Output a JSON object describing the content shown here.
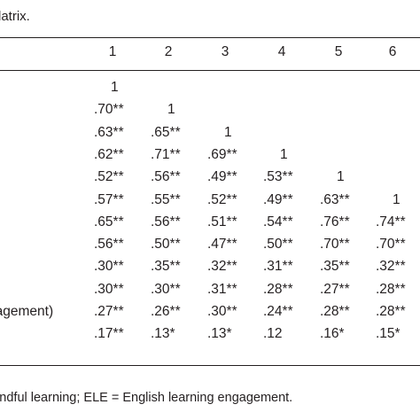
{
  "caption": "latrix.",
  "columns": [
    "1",
    "2",
    "3",
    "4",
    "5",
    "6"
  ],
  "rows": [
    {
      "label": "",
      "cells": [
        "1",
        "",
        "",
        "",
        "",
        ""
      ]
    },
    {
      "label": "",
      "cells": [
        ".70**",
        "1",
        "",
        "",
        "",
        ""
      ]
    },
    {
      "label": "",
      "cells": [
        ".63**",
        ".65**",
        "1",
        "",
        "",
        ""
      ]
    },
    {
      "label": "",
      "cells": [
        ".62**",
        ".71**",
        ".69**",
        "1",
        "",
        ""
      ]
    },
    {
      "label": "",
      "cells": [
        ".52**",
        ".56**",
        ".49**",
        ".53**",
        "1",
        ""
      ]
    },
    {
      "label": "",
      "cells": [
        ".57**",
        ".55**",
        ".52**",
        ".49**",
        ".63**",
        "1"
      ]
    },
    {
      "label": "",
      "cells": [
        ".65**",
        ".56**",
        ".51**",
        ".54**",
        ".76**",
        ".74**"
      ]
    },
    {
      "label": "",
      "cells": [
        ".56**",
        ".50**",
        ".47**",
        ".50**",
        ".70**",
        ".70**"
      ]
    },
    {
      "label": "",
      "cells": [
        ".30**",
        ".35**",
        ".32**",
        ".31**",
        ".35**",
        ".32**"
      ]
    },
    {
      "label": "",
      "cells": [
        ".30**",
        ".30**",
        ".31**",
        ".28**",
        ".27**",
        ".28**"
      ]
    },
    {
      "label": "gagement)",
      "cells": [
        ".27**",
        ".26**",
        ".30**",
        ".24**",
        ".28**",
        ".28**"
      ]
    },
    {
      "label": "",
      "cells": [
        ".17**",
        ".13*",
        ".13*",
        ".12",
        ".16*",
        ".15*"
      ]
    }
  ],
  "note": "mindful learning; ELE = English learning engagement."
}
